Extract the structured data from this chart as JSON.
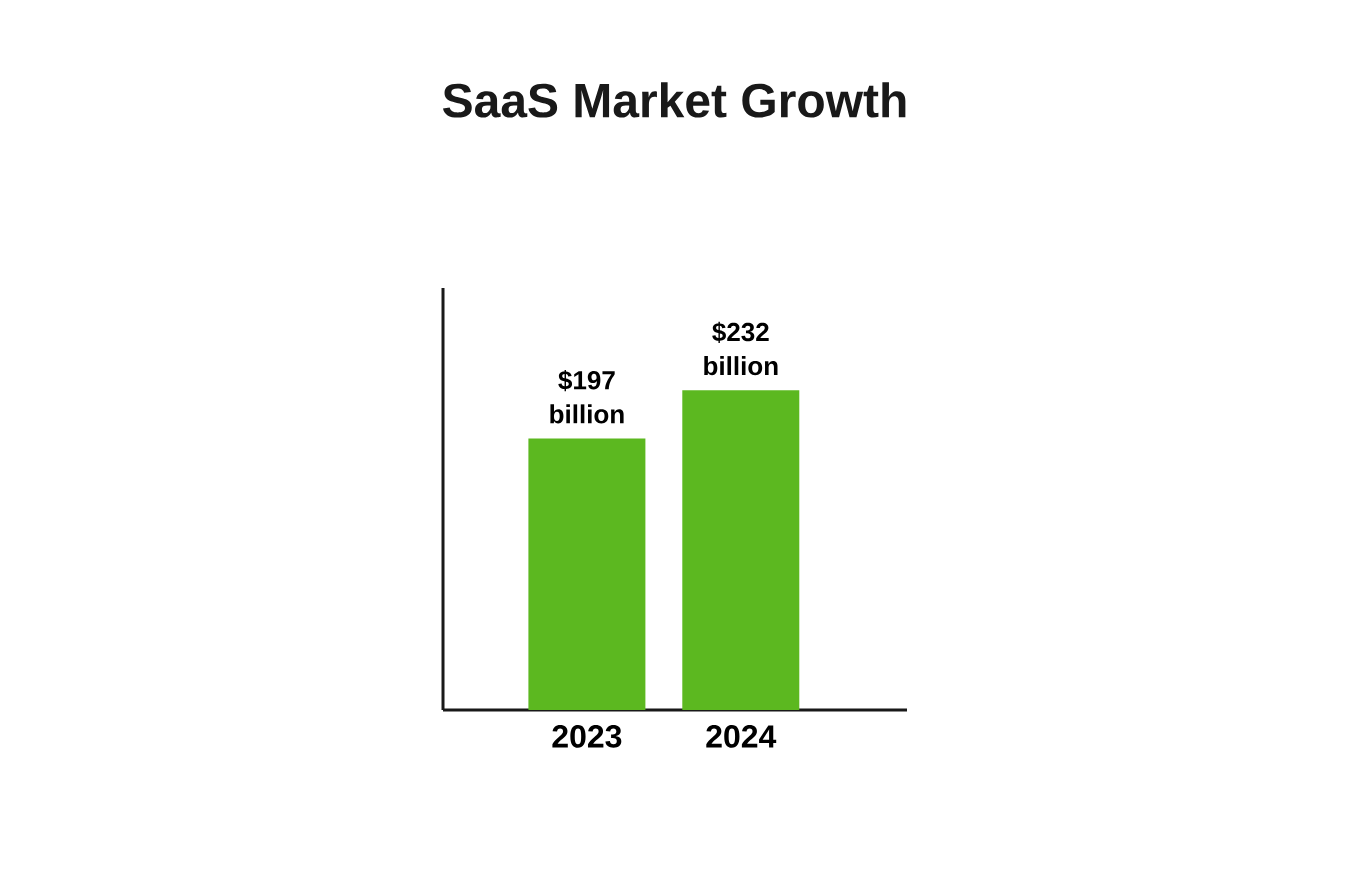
{
  "chart_data": {
    "type": "bar",
    "title": "SaaS Market Growth",
    "categories": [
      "2023",
      "2024"
    ],
    "values": [
      197,
      232
    ],
    "color": "#5cb820",
    "value_labels": [
      "$197 billion",
      "$232 billion"
    ]
  }
}
